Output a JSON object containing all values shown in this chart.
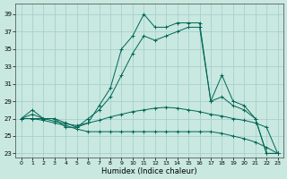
{
  "xlabel": "Humidex (Indice chaleur)",
  "bg_color": "#c8e8e0",
  "grid_color": "#a0cccc",
  "line_color": "#006655",
  "xlim": [
    -0.5,
    23.5
  ],
  "ylim": [
    22.5,
    40.2
  ],
  "xticks": [
    0,
    1,
    2,
    3,
    4,
    5,
    6,
    7,
    8,
    9,
    10,
    11,
    12,
    13,
    14,
    15,
    16,
    17,
    18,
    19,
    20,
    21,
    22,
    23
  ],
  "yticks": [
    23,
    25,
    27,
    29,
    31,
    33,
    35,
    37,
    39
  ],
  "curve1_x": [
    0,
    1,
    2,
    3,
    4,
    5,
    6,
    7,
    8,
    9,
    10,
    11,
    12,
    13,
    14,
    15,
    16,
    17,
    18,
    19,
    20,
    21,
    22,
    23
  ],
  "curve1_y": [
    27.0,
    28.0,
    27.0,
    27.0,
    26.0,
    26.0,
    26.5,
    28.5,
    30.5,
    35.0,
    36.5,
    39.0,
    37.5,
    37.5,
    38.0,
    38.0,
    38.0,
    29.0,
    32.0,
    29.0,
    28.5,
    27.0,
    23.0,
    23.0
  ],
  "curve2_x": [
    0,
    1,
    2,
    3,
    4,
    5,
    6,
    7,
    8,
    9,
    10,
    11,
    12,
    13,
    14,
    15,
    16,
    17,
    18,
    19,
    20,
    21,
    22,
    23
  ],
  "curve2_y": [
    27.0,
    27.5,
    27.0,
    27.0,
    26.5,
    26.0,
    27.0,
    28.0,
    29.5,
    32.0,
    34.5,
    36.5,
    36.0,
    36.5,
    37.0,
    37.5,
    37.5,
    29.0,
    29.5,
    28.5,
    28.0,
    27.0,
    23.0,
    23.0
  ],
  "curve3_x": [
    0,
    1,
    2,
    3,
    4,
    5,
    6,
    7,
    8,
    9,
    10,
    11,
    12,
    13,
    14,
    15,
    16,
    17,
    18,
    19,
    20,
    21,
    22,
    23
  ],
  "curve3_y": [
    27.0,
    27.0,
    27.0,
    26.7,
    26.4,
    26.2,
    26.5,
    26.8,
    27.2,
    27.5,
    27.8,
    28.0,
    28.2,
    28.3,
    28.2,
    28.0,
    27.8,
    27.5,
    27.3,
    27.0,
    26.8,
    26.5,
    26.0,
    23.0
  ],
  "curve4_x": [
    0,
    1,
    2,
    3,
    4,
    5,
    6,
    7,
    8,
    9,
    10,
    11,
    12,
    13,
    14,
    15,
    16,
    17,
    18,
    19,
    20,
    21,
    22,
    23
  ],
  "curve4_y": [
    27.0,
    27.0,
    26.8,
    26.5,
    26.2,
    25.8,
    25.5,
    25.5,
    25.5,
    25.5,
    25.5,
    25.5,
    25.5,
    25.5,
    25.5,
    25.5,
    25.5,
    25.5,
    25.3,
    25.0,
    24.7,
    24.3,
    23.7,
    23.0
  ]
}
